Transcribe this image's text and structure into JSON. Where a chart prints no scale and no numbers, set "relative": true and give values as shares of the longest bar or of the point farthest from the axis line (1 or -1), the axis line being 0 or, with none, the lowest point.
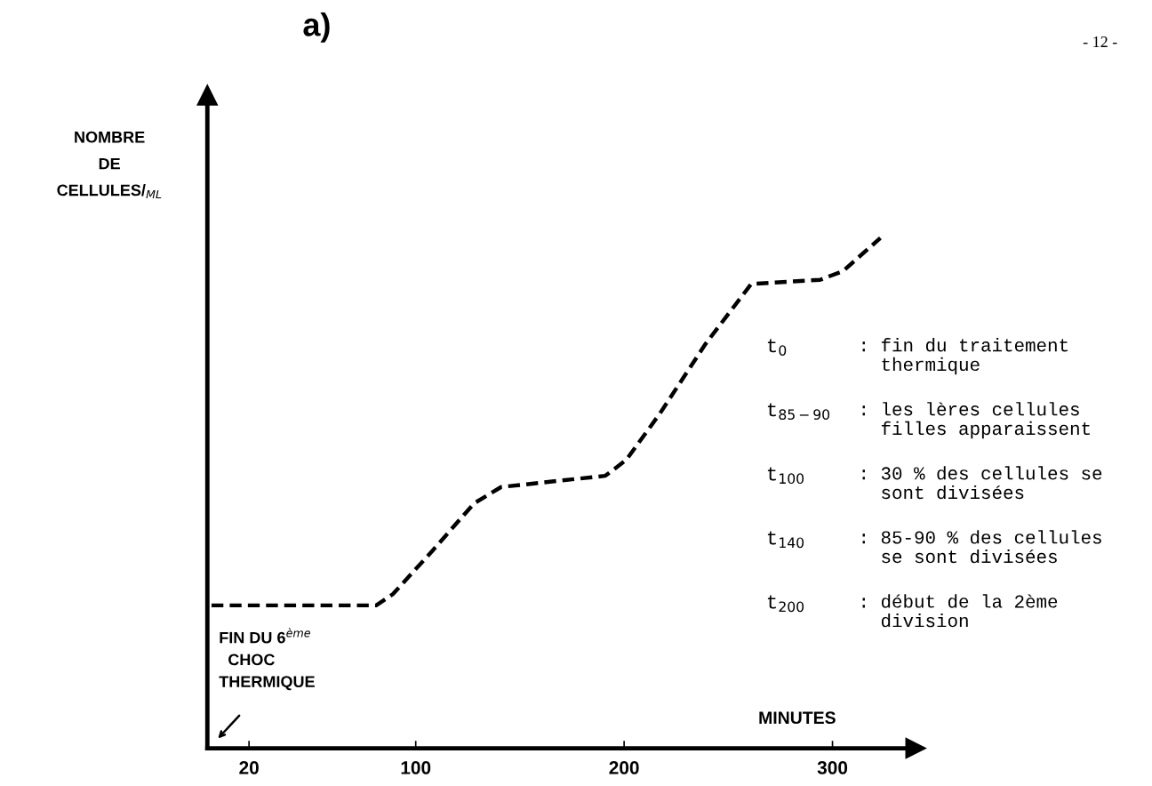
{
  "chart_data": {
    "type": "line",
    "relative": true,
    "title": "a)",
    "ylabel": "NOMBRE\nDE\nCELLULES/$_{ML}$",
    "xlabel": "MINUTES",
    "xlim": [
      0,
      340
    ],
    "xticks": [
      20,
      100,
      200,
      300
    ],
    "line_style": "dashed",
    "marker": "none",
    "grid": false,
    "legend": false,
    "series": [
      {
        "color": "#000000",
        "x": [
          2,
          81,
          89,
          108,
          128,
          141,
          191,
          201,
          217,
          239,
          261,
          294,
          305,
          323
        ],
        "values": [
          0.28,
          0.28,
          0.302,
          0.387,
          0.48,
          0.512,
          0.534,
          0.565,
          0.655,
          0.792,
          0.91,
          0.918,
          0.935,
          1.0
        ]
      }
    ],
    "annotations": [
      "- 12 -",
      "FIN DU 6$^{ème}$\n  CHOC\nTHERMIQUE",
      "t$_{0}$ : fin du traitement\nthermique",
      "t$_{85−90}$ : les lères cellules\nfilles apparaissent",
      "t$_{100}$ : 30 % des cellules se\nsont divisées",
      "t$_{140}$ : 85-90 % des cellules\nse sont divisées",
      "t$_{200}$ : début de la 2ème\ndivision"
    ]
  }
}
